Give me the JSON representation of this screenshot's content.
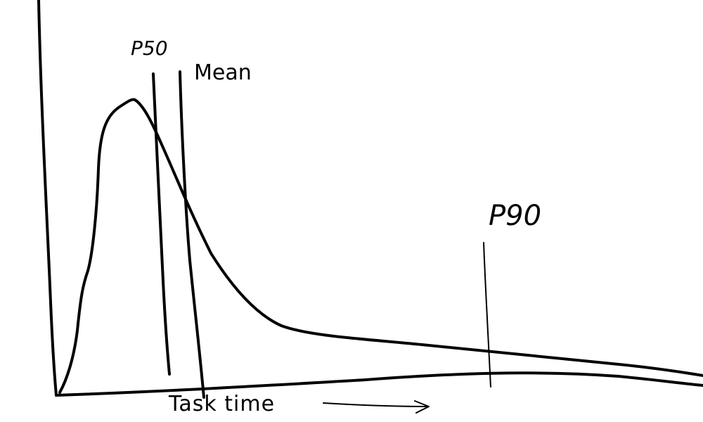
{
  "diagram": {
    "x_axis_label": "Task time",
    "markers": {
      "p50": "P50",
      "mean": "Mean",
      "p90": "P90"
    }
  }
}
